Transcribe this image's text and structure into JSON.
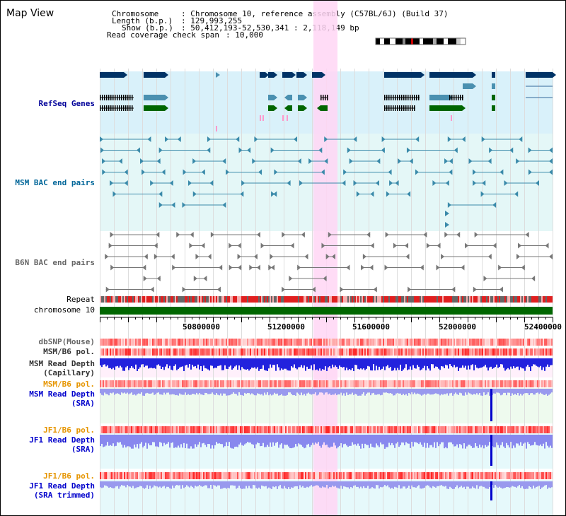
{
  "title": "Map View",
  "info": {
    "chromosome_label": "Chromosome",
    "chromosome_value": "Chromosome 10, reference assembly (C57BL/6J) (Build 37)",
    "length_label": "Length (b.p.)",
    "length_value": "129,993,255",
    "show_label": "Show (b.p.)",
    "show_value": "50,412,193-52,530,341 : 2,118,149 bp",
    "span_label": "Read coverage check span",
    "span_value": "10,000"
  },
  "tracks": {
    "refseq": "RefSeq Genes",
    "msm_bac": "MSM BAC end pairs",
    "b6n_bac": "B6N BAC end pairs",
    "repeat": "Repeat",
    "chromosome": "chromosome 10",
    "dbsnp": "dbSNP(Mouse)",
    "msm_b6_pol_1": "MSM/B6 pol.",
    "msm_depth_cap_1": "MSM Read Depth",
    "msm_depth_cap_2": "(Capillary)",
    "msm_b6_pol_2": "MSM/B6 pol.",
    "msm_depth_sra_1": "MSM Read Depth",
    "msm_depth_sra_2": "(SRA)",
    "jf1_pol_1": "JF1/B6 pol.",
    "jf1_depth_sra_1": "JF1 Read Depth",
    "jf1_depth_sra_2": "(SRA)",
    "jf1_pol_2": "JF1/B6 pol.",
    "jf1_depth_trim_1": "JF1 Read Depth",
    "jf1_depth_trim_2": "(SRA trimmed)"
  },
  "axis": {
    "ticks": [
      "50800000",
      "51200000",
      "51600000",
      "52000000",
      "52400000"
    ]
  },
  "colors": {
    "refseq_label": "#000099",
    "msm_label": "#006699",
    "b6n_label": "#666666",
    "read_depth_label": "#0000cc",
    "pol_label": "#e69500",
    "gene_navy": "#003366",
    "gene_teal": "#4a90b0",
    "gene_green": "#006600",
    "chromosome_bar": "#006600",
    "highlight": "#ffd6f5"
  }
}
